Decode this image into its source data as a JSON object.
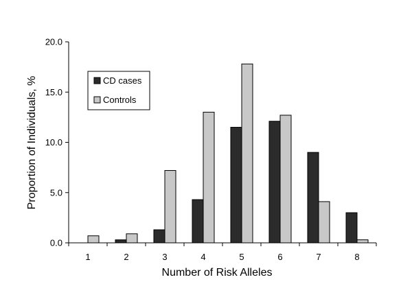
{
  "chart_data": {
    "type": "bar",
    "title": "",
    "xlabel": "Number of Risk Alleles",
    "ylabel": "Proportion of Individuals, %",
    "categories": [
      "1",
      "2",
      "3",
      "4",
      "5",
      "6",
      "7",
      "8"
    ],
    "ylim": [
      0,
      20
    ],
    "yticks": [
      "0.0",
      "5.0",
      "10.0",
      "15.0",
      "20.0"
    ],
    "grid": false,
    "legend_position": "top-left",
    "series": [
      {
        "name": "CD cases",
        "color": "#2b2b2b",
        "values": [
          0.0,
          0.3,
          1.3,
          4.3,
          11.5,
          12.1,
          9.0,
          3.0
        ]
      },
      {
        "name": "Controls",
        "color": "#c8c8c8",
        "values": [
          0.7,
          0.9,
          7.2,
          13.0,
          17.8,
          12.7,
          4.1,
          0.3
        ]
      }
    ]
  }
}
